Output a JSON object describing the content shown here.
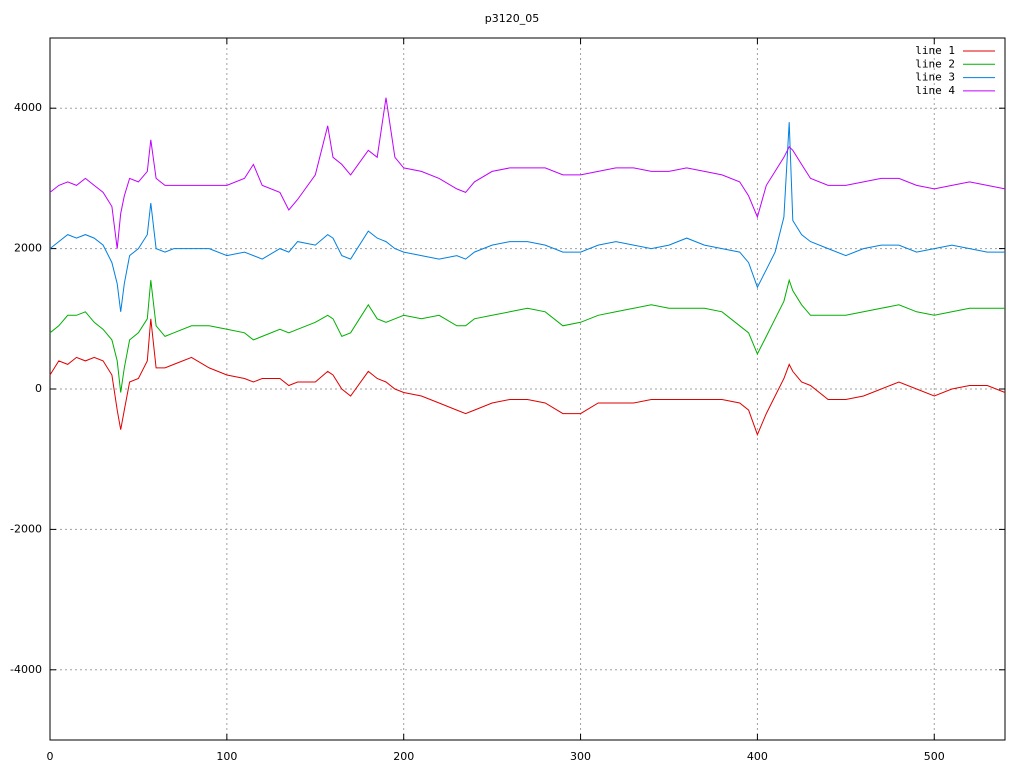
{
  "chart_data": {
    "type": "line",
    "title": "p3120_05",
    "x": [
      0,
      5,
      10,
      15,
      20,
      25,
      30,
      35,
      38,
      40,
      42,
      45,
      50,
      55,
      57,
      60,
      65,
      70,
      80,
      90,
      100,
      110,
      115,
      120,
      130,
      135,
      140,
      150,
      157,
      160,
      165,
      170,
      180,
      185,
      190,
      195,
      200,
      210,
      220,
      230,
      235,
      240,
      250,
      260,
      270,
      280,
      290,
      300,
      310,
      320,
      330,
      340,
      350,
      360,
      370,
      380,
      390,
      395,
      400,
      405,
      410,
      415,
      418,
      420,
      425,
      430,
      440,
      450,
      460,
      470,
      480,
      490,
      500,
      510,
      520,
      530,
      540
    ],
    "series": [
      {
        "name": "line 1",
        "color": "#e00000",
        "values": [
          200,
          400,
          350,
          450,
          400,
          450,
          400,
          200,
          -300,
          -580,
          -300,
          100,
          150,
          400,
          1000,
          300,
          300,
          350,
          450,
          300,
          200,
          150,
          100,
          150,
          150,
          50,
          100,
          100,
          250,
          200,
          0,
          -100,
          250,
          150,
          100,
          0,
          -50,
          -100,
          -200,
          -300,
          -350,
          -300,
          -200,
          -150,
          -150,
          -200,
          -350,
          -350,
          -200,
          -200,
          -200,
          -150,
          -150,
          -150,
          -150,
          -150,
          -200,
          -300,
          -650,
          -350,
          -100,
          150,
          350,
          250,
          100,
          50,
          -150,
          -150,
          -100,
          0,
          100,
          0,
          -100,
          0,
          50,
          50,
          -50
        ]
      },
      {
        "name": "line 2",
        "color": "#00b000",
        "values": [
          800,
          900,
          1050,
          1050,
          1100,
          950,
          850,
          700,
          400,
          -50,
          300,
          700,
          800,
          1000,
          1550,
          900,
          750,
          800,
          900,
          900,
          850,
          800,
          700,
          750,
          850,
          800,
          850,
          950,
          1050,
          1000,
          750,
          800,
          1200,
          1000,
          950,
          1000,
          1050,
          1000,
          1050,
          900,
          900,
          1000,
          1050,
          1100,
          1150,
          1100,
          900,
          950,
          1050,
          1100,
          1150,
          1200,
          1150,
          1150,
          1150,
          1100,
          900,
          800,
          500,
          750,
          1000,
          1250,
          1550,
          1400,
          1200,
          1050,
          1050,
          1050,
          1100,
          1150,
          1200,
          1100,
          1050,
          1100,
          1150,
          1150,
          1150
        ]
      },
      {
        "name": "line 3",
        "color": "#0080e0",
        "values": [
          2000,
          2100,
          2200,
          2150,
          2200,
          2150,
          2050,
          1800,
          1500,
          1100,
          1500,
          1900,
          2000,
          2200,
          2650,
          2000,
          1950,
          2000,
          2000,
          2000,
          1900,
          1950,
          1900,
          1850,
          2000,
          1950,
          2100,
          2050,
          2200,
          2150,
          1900,
          1850,
          2250,
          2150,
          2100,
          2000,
          1950,
          1900,
          1850,
          1900,
          1850,
          1950,
          2050,
          2100,
          2100,
          2050,
          1950,
          1950,
          2050,
          2100,
          2050,
          2000,
          2050,
          2150,
          2050,
          2000,
          1950,
          1800,
          1450,
          1700,
          1950,
          2450,
          3800,
          2400,
          2200,
          2100,
          2000,
          1900,
          2000,
          2050,
          2050,
          1950,
          2000,
          2050,
          2000,
          1950,
          1950
        ]
      },
      {
        "name": "line 4",
        "color": "#c000ff",
        "values": [
          2800,
          2900,
          2950,
          2900,
          3000,
          2900,
          2800,
          2600,
          2000,
          2500,
          2750,
          3000,
          2950,
          3100,
          3550,
          3000,
          2900,
          2900,
          2900,
          2900,
          2900,
          3000,
          3200,
          2900,
          2800,
          2550,
          2700,
          3050,
          3750,
          3300,
          3200,
          3050,
          3400,
          3300,
          4150,
          3300,
          3150,
          3100,
          3000,
          2850,
          2800,
          2950,
          3100,
          3150,
          3150,
          3150,
          3050,
          3050,
          3100,
          3150,
          3150,
          3100,
          3100,
          3150,
          3100,
          3050,
          2950,
          2750,
          2450,
          2900,
          3100,
          3300,
          3450,
          3400,
          3200,
          3000,
          2900,
          2900,
          2950,
          3000,
          3000,
          2900,
          2850,
          2900,
          2950,
          2900,
          2850
        ]
      }
    ],
    "xlim": [
      0,
      540
    ],
    "xticks": [
      0,
      100,
      200,
      300,
      400,
      500
    ],
    "ylim": [
      -5000,
      5000
    ],
    "yticks": [
      -4000,
      -2000,
      0,
      2000,
      4000
    ],
    "grid": true,
    "legend": "top-right"
  }
}
